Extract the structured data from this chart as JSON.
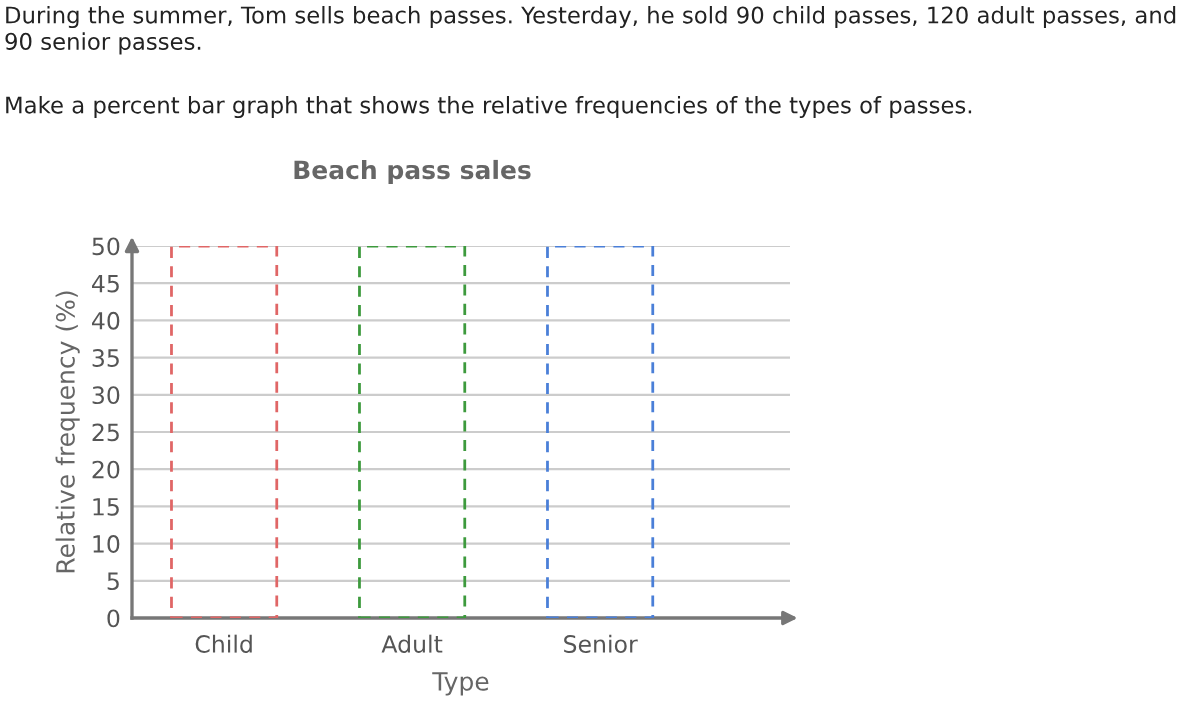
{
  "chart_data": {
    "type": "bar",
    "title": "Beach pass sales",
    "annotations": [
      "During the summer, Tom sells beach passes. Yesterday, he sold 90 child passes, 120 adult passes, and 90 senior passes.",
      "Make a percent bar graph that shows the relative frequencies of the types of passes."
    ],
    "xlabel": "Type",
    "ylabel": "Relative frequency (%)",
    "categories": [
      "Child",
      "Adult",
      "Senior"
    ],
    "values": [
      50,
      50,
      50
    ],
    "colors": [
      "#e06666",
      "#3d9a3d",
      "#4a7fd8"
    ],
    "line_style": "dashed",
    "ylim": [
      0,
      50
    ],
    "yticks": [
      0,
      5,
      10,
      15,
      20,
      25,
      30,
      35,
      40,
      45,
      50
    ],
    "grid": "y",
    "legend": false
  }
}
